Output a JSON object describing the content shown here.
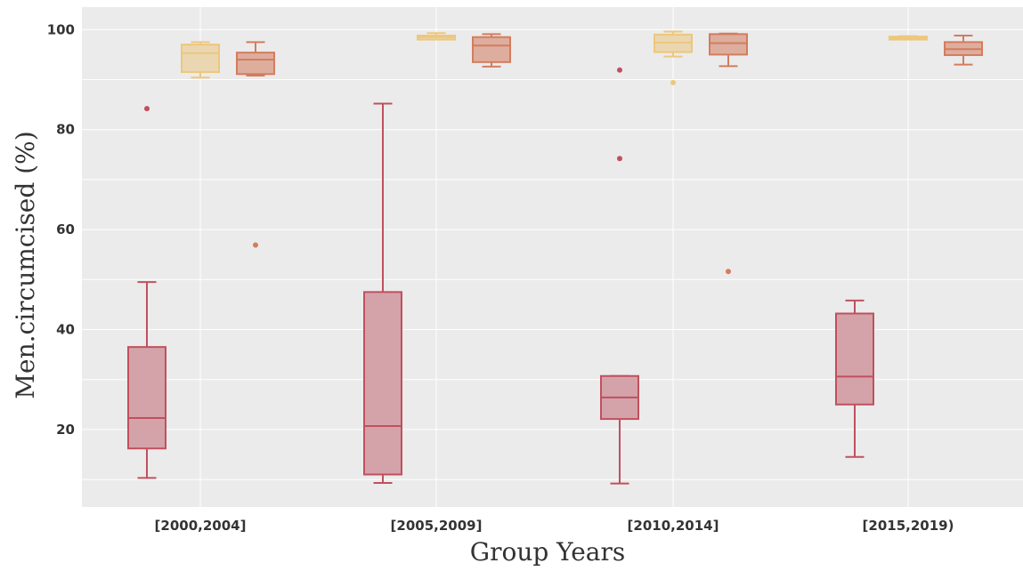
{
  "chart_data": {
    "type": "box",
    "xlabel": "Group Years",
    "ylabel": "Men.circumcised (%)",
    "categories": [
      "[2000,2004]",
      "[2005,2009]",
      "[2010,2014]",
      "[2015,2019)"
    ],
    "y_ticks": [
      20,
      40,
      60,
      80,
      100
    ],
    "ylim": [
      4.5,
      104.5
    ],
    "grid": true,
    "legend": "none",
    "background": "#ebebeb",
    "series": [
      {
        "color": "#c0505f",
        "fill": "#d4a3aa",
        "boxes": [
          {
            "min": 10.3,
            "q1": 16.2,
            "median": 22.3,
            "q3": 36.5,
            "max": 49.5,
            "outliers": [
              84.2
            ]
          },
          {
            "min": 9.3,
            "q1": 11.0,
            "median": 20.7,
            "q3": 47.5,
            "max": 85.2,
            "outliers": []
          },
          {
            "min": 9.2,
            "q1": 22.1,
            "median": 26.4,
            "q3": 30.7,
            "max": 30.7,
            "outliers": [
              74.2,
              91.9
            ]
          },
          {
            "min": 14.5,
            "q1": 25.0,
            "median": 30.6,
            "q3": 43.2,
            "max": 45.8,
            "outliers": []
          }
        ]
      },
      {
        "color": "#edc77c",
        "fill": "#ead7b2",
        "boxes": [
          {
            "min": 90.4,
            "q1": 91.5,
            "median": 95.3,
            "q3": 97.0,
            "max": 97.5,
            "outliers": []
          },
          {
            "min": 98.0,
            "q1": 98.0,
            "median": 98.5,
            "q3": 98.8,
            "max": 99.3,
            "outliers": []
          },
          {
            "min": 94.6,
            "q1": 95.5,
            "median": 97.4,
            "q3": 99.0,
            "max": 99.6,
            "outliers": [
              89.4
            ]
          },
          {
            "min": 98.0,
            "q1": 98.0,
            "median": 98.3,
            "q3": 98.6,
            "max": 98.7,
            "outliers": []
          }
        ]
      },
      {
        "color": "#d47c5e",
        "fill": "#ddae9d",
        "boxes": [
          {
            "min": 90.8,
            "q1": 91.1,
            "median": 94.0,
            "q3": 95.4,
            "max": 97.5,
            "outliers": [
              56.9
            ]
          },
          {
            "min": 92.6,
            "q1": 93.5,
            "median": 96.8,
            "q3": 98.5,
            "max": 99.1,
            "outliers": []
          },
          {
            "min": 92.7,
            "q1": 95.0,
            "median": 97.3,
            "q3": 99.1,
            "max": 99.2,
            "outliers": [
              51.6
            ]
          },
          {
            "min": 93.0,
            "q1": 94.9,
            "median": 96.1,
            "q3": 97.5,
            "max": 98.8,
            "outliers": []
          }
        ]
      }
    ]
  }
}
